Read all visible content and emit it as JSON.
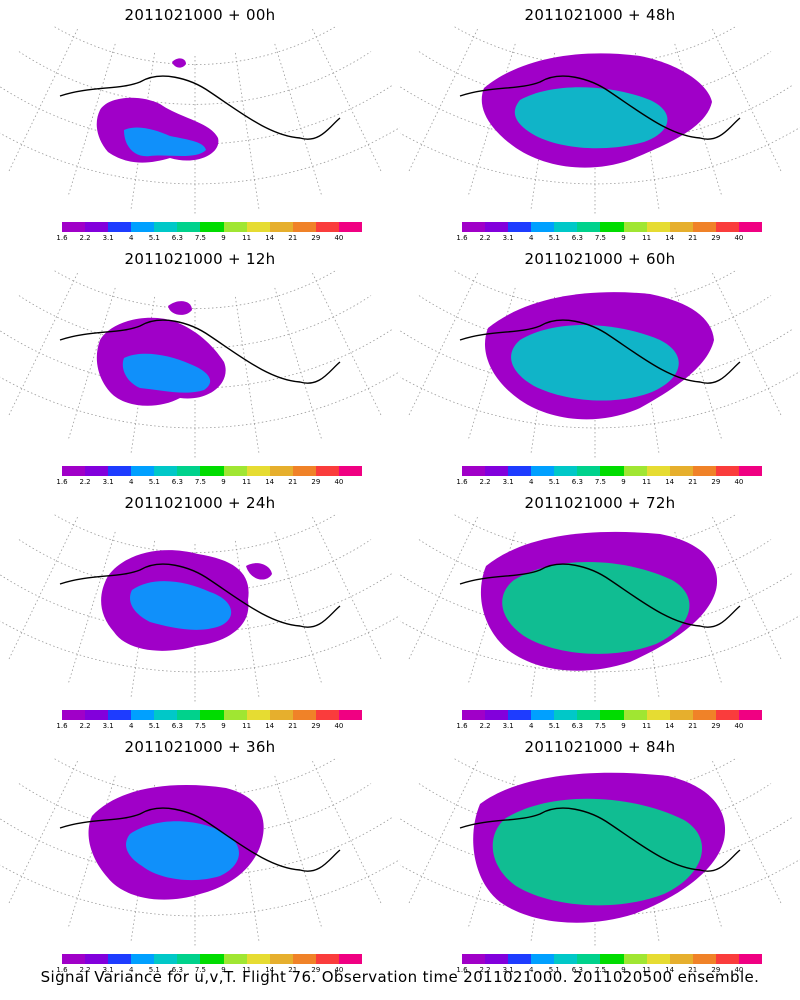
{
  "panels": [
    {
      "title": "2011021000 + 00h",
      "lead_hours": 0
    },
    {
      "title": "2011021000 + 48h",
      "lead_hours": 48
    },
    {
      "title": "2011021000 + 12h",
      "lead_hours": 12
    },
    {
      "title": "2011021000 + 60h",
      "lead_hours": 60
    },
    {
      "title": "2011021000 + 24h",
      "lead_hours": 24
    },
    {
      "title": "2011021000 + 72h",
      "lead_hours": 72
    },
    {
      "title": "2011021000 + 36h",
      "lead_hours": 36
    },
    {
      "title": "2011021000 + 84h",
      "lead_hours": 84
    }
  ],
  "colorbar": {
    "labels": [
      "1.6",
      "2.2",
      "3.1",
      "4",
      "5.1",
      "6.3",
      "7.5",
      "9",
      "11",
      "14",
      "21",
      "29",
      "40"
    ],
    "colors": [
      "#a000c8",
      "#8200dc",
      "#1e3cff",
      "#00a0ff",
      "#00c8c8",
      "#00d28c",
      "#00dc00",
      "#a0e632",
      "#e6dc32",
      "#e6af2d",
      "#f08228",
      "#fa3c3c",
      "#f00082"
    ]
  },
  "footer": "Signal Variance for u,v,T. Flight 76. Observation time 2011021000. 2011020500 ensemble."
}
